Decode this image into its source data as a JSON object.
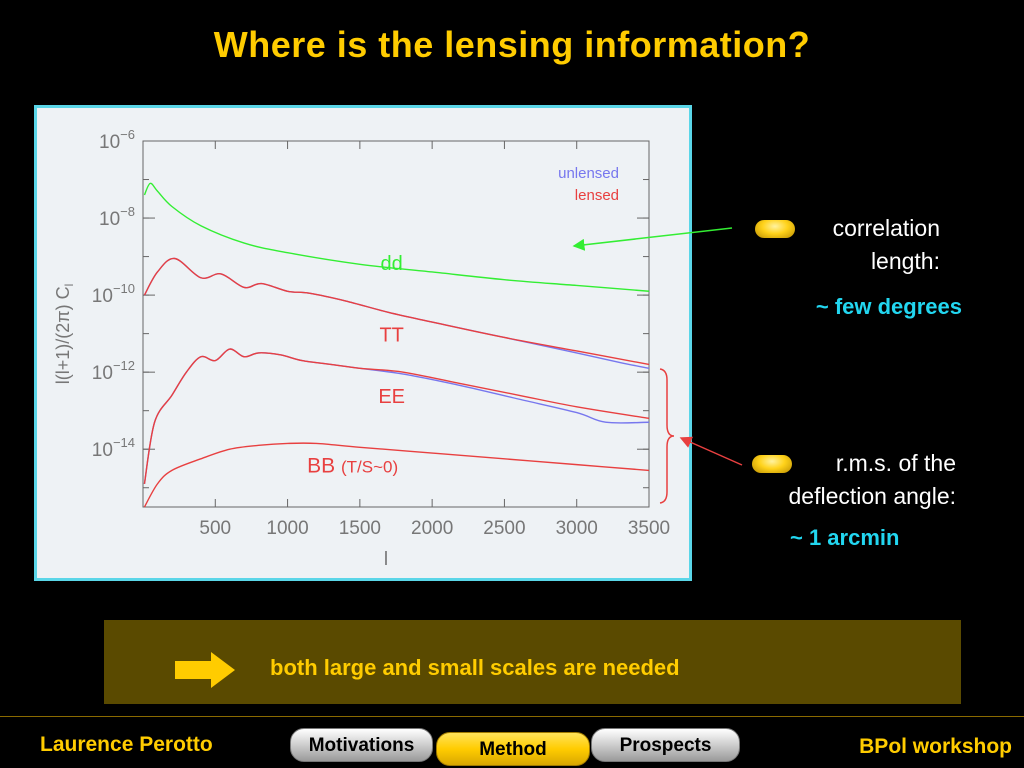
{
  "slide": {
    "title": "Where is the lensing information?",
    "banner_text": "both large and small scales are needed",
    "footer_author": "Laurence Perotto",
    "footer_event": "BPol workshop"
  },
  "notes": {
    "correlation_line1": "correlation",
    "correlation_line2": "length:",
    "correlation_value": "~ few degrees",
    "rms_line1": "r.m.s. of the",
    "rms_line2": "deflection angle:",
    "rms_value": "~ 1 arcmin"
  },
  "nav": {
    "tabs": [
      {
        "label": "Motivations",
        "active": false
      },
      {
        "label": "Method",
        "active": true
      },
      {
        "label": "Prospects",
        "active": false
      }
    ]
  },
  "colors": {
    "accent": "#ffcc00",
    "cyan": "#22d6f0",
    "dd": "#33ee33",
    "lensed": "#e84040",
    "unlensed": "#7777ee"
  },
  "icons": [
    "right-arrow-icon",
    "gold-bullet-icon",
    "curly-brace-icon"
  ],
  "chart_data": {
    "type": "line",
    "xlabel": "l",
    "ylabel": "l(l+1)/(2π) C",
    "ylabel_subscript": "l",
    "xlim": [
      0,
      3500
    ],
    "ylim_exponent": [
      -15.5,
      -6
    ],
    "log_y": true,
    "x_ticks": [
      500,
      1000,
      1500,
      2000,
      2500,
      3000,
      3500
    ],
    "y_tick_labels": [
      {
        "base": "10",
        "exp": "−6",
        "value": 1e-06
      },
      {
        "base": "10",
        "exp": "−8",
        "value": 1e-08
      },
      {
        "base": "10",
        "exp": "−10",
        "value": 1e-10
      },
      {
        "base": "10",
        "exp": "−12",
        "value": 1e-12
      },
      {
        "base": "10",
        "exp": "−14",
        "value": 1e-14
      }
    ],
    "legend": [
      {
        "label": "unlensed",
        "color": "#7777ee"
      },
      {
        "label": "lensed",
        "color": "#e84040"
      }
    ],
    "legend_position": "top-right",
    "curve_labels": {
      "dd": "dd",
      "tt": "TT",
      "ee": "EE",
      "bb": "BB",
      "bb_note": "(T/S~0)"
    },
    "series": [
      {
        "name": "dd",
        "x": [
          10,
          50,
          100,
          200,
          400,
          700,
          1000,
          1500,
          2000,
          2500,
          3000,
          3500
        ],
        "log10_y": [
          -7.4,
          -7.1,
          -7.3,
          -7.7,
          -8.2,
          -8.65,
          -8.9,
          -9.2,
          -9.4,
          -9.6,
          -9.75,
          -9.9
        ]
      },
      {
        "name": "TT lensed",
        "x": [
          10,
          100,
          220,
          400,
          540,
          700,
          820,
          1000,
          1150,
          1400,
          1700,
          2000,
          2500,
          3000,
          3500
        ],
        "log10_y": [
          -10.0,
          -9.4,
          -9.05,
          -9.55,
          -9.45,
          -9.8,
          -9.7,
          -9.9,
          -9.95,
          -10.15,
          -10.45,
          -10.7,
          -11.1,
          -11.45,
          -11.8
        ]
      },
      {
        "name": "TT unlensed",
        "x": [
          10,
          100,
          220,
          400,
          540,
          700,
          820,
          1000,
          1150,
          1400,
          1700,
          2000,
          2500,
          3000,
          3300,
          3500
        ],
        "log10_y": [
          -10.0,
          -9.4,
          -9.05,
          -9.55,
          -9.45,
          -9.8,
          -9.7,
          -9.9,
          -9.95,
          -10.15,
          -10.45,
          -10.7,
          -11.1,
          -11.5,
          -11.75,
          -11.9
        ]
      },
      {
        "name": "EE lensed",
        "x": [
          10,
          80,
          200,
          300,
          400,
          500,
          600,
          700,
          800,
          950,
          1100,
          1300,
          1500,
          1800,
          2200,
          2600,
          3000,
          3500
        ],
        "log10_y": [
          -14.9,
          -13.3,
          -12.6,
          -12.0,
          -11.6,
          -11.7,
          -11.4,
          -11.6,
          -11.5,
          -11.55,
          -11.7,
          -11.8,
          -11.9,
          -12.0,
          -12.3,
          -12.6,
          -12.9,
          -13.2
        ]
      },
      {
        "name": "EE unlensed",
        "x": [
          10,
          80,
          200,
          300,
          400,
          500,
          600,
          700,
          800,
          950,
          1100,
          1300,
          1500,
          1800,
          2200,
          2600,
          3000,
          3200,
          3500
        ],
        "log10_y": [
          -14.9,
          -13.3,
          -12.6,
          -12.0,
          -11.6,
          -11.7,
          -11.4,
          -11.6,
          -11.5,
          -11.55,
          -11.7,
          -11.8,
          -11.9,
          -12.05,
          -12.35,
          -12.7,
          -13.05,
          -13.3,
          -13.3
        ]
      },
      {
        "name": "BB lensed",
        "x": [
          10,
          100,
          200,
          400,
          600,
          800,
          1000,
          1200,
          1500,
          2000,
          2500,
          3000,
          3500
        ],
        "log10_y": [
          -15.5,
          -14.9,
          -14.55,
          -14.25,
          -14.0,
          -13.9,
          -13.85,
          -13.85,
          -13.95,
          -14.1,
          -14.25,
          -14.4,
          -14.55
        ]
      }
    ]
  }
}
